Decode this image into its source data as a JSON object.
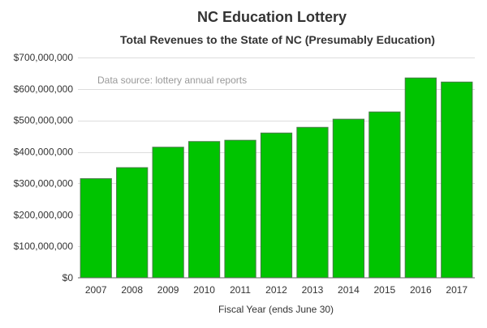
{
  "chart_data": {
    "type": "bar",
    "title": "NC Education Lottery",
    "subtitle": "Total Revenues to the State of NC (Presumably Education)",
    "xlabel": "Fiscal Year (ends June 30)",
    "ylabel": "",
    "annotation": "Data source: lottery annual reports",
    "categories": [
      "2007",
      "2008",
      "2009",
      "2010",
      "2011",
      "2012",
      "2013",
      "2014",
      "2015",
      "2016",
      "2017"
    ],
    "values": [
      315000000,
      350000000,
      415000000,
      433000000,
      437000000,
      460000000,
      478000000,
      504000000,
      527000000,
      635000000,
      622000000
    ],
    "ylim": [
      0,
      700000000
    ],
    "yticks": [
      0,
      100000000,
      200000000,
      300000000,
      400000000,
      500000000,
      600000000,
      700000000
    ],
    "ytick_labels": [
      "$0",
      "$100,000,000",
      "$200,000,000",
      "$300,000,000",
      "$400,000,000",
      "$500,000,000",
      "$600,000,000",
      "$700,000,000"
    ],
    "grid": true,
    "legend": "none",
    "bar_color": "#00c400",
    "bar_edge_color": "#4a7a4a",
    "grid_color": "#dddddd"
  }
}
